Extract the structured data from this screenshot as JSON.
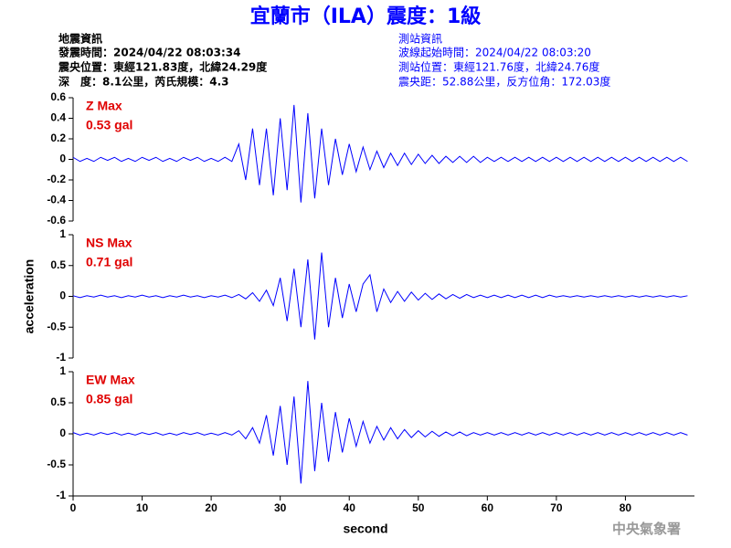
{
  "header": {
    "title": "宜蘭市（ILA）震度：1級",
    "left": [
      "地震資訊",
      "發震時間：2024/04/22 08:03:34",
      "震央位置：東經121.83度，北緯24.29度",
      "深　度：8.1公里，芮氏規模：4.3"
    ],
    "right": [
      "測站資訊",
      "波線起始時間：2024/04/22 08:03:20",
      "測站位置：東經121.76度，北緯24.76度",
      "震央距：52.88公里，反方位角：172.03度"
    ],
    "footer": "中央氣象署"
  },
  "chart_data": [
    {
      "type": "line",
      "name": "Z Max",
      "max_label": "0.53 gal",
      "color": "#0000ff",
      "x": [
        0,
        1,
        2,
        3,
        4,
        5,
        6,
        7,
        8,
        9,
        10,
        11,
        12,
        13,
        14,
        15,
        16,
        17,
        18,
        19,
        20,
        21,
        22,
        23,
        24,
        25,
        26,
        27,
        28,
        29,
        30,
        31,
        32,
        33,
        34,
        35,
        36,
        37,
        38,
        39,
        40,
        41,
        42,
        43,
        44,
        45,
        46,
        47,
        48,
        49,
        50,
        51,
        52,
        53,
        54,
        55,
        56,
        57,
        58,
        59,
        60,
        61,
        62,
        63,
        64,
        65,
        66,
        67,
        68,
        69,
        70,
        71,
        72,
        73,
        74,
        75,
        76,
        77,
        78,
        79,
        80,
        81,
        82,
        83,
        84,
        85,
        86,
        87,
        88,
        89
      ],
      "values": [
        0.02,
        -0.02,
        0.01,
        -0.02,
        0.02,
        -0.01,
        0.02,
        -0.02,
        0.01,
        -0.02,
        0.02,
        -0.01,
        0.02,
        -0.02,
        0.01,
        -0.02,
        0.02,
        -0.01,
        0.02,
        -0.02,
        0.01,
        -0.02,
        0.02,
        -0.02,
        0.15,
        -0.2,
        0.3,
        -0.25,
        0.3,
        -0.35,
        0.4,
        -0.3,
        0.53,
        -0.42,
        0.45,
        -0.38,
        0.3,
        -0.25,
        0.2,
        -0.15,
        0.15,
        -0.12,
        0.12,
        -0.1,
        0.08,
        -0.08,
        0.06,
        -0.06,
        0.06,
        -0.05,
        0.05,
        -0.04,
        0.04,
        -0.04,
        0.03,
        -0.03,
        0.03,
        -0.03,
        0.03,
        -0.03,
        0.02,
        -0.02,
        0.02,
        -0.02,
        0.02,
        -0.02,
        0.02,
        -0.02,
        0.02,
        -0.02,
        0.02,
        -0.02,
        0.02,
        -0.02,
        0.02,
        -0.02,
        0.02,
        -0.02,
        0.02,
        -0.02,
        0.02,
        -0.02,
        0.02,
        -0.02,
        0.02,
        -0.02,
        0.02,
        -0.02,
        0.02,
        -0.02
      ],
      "xlim": [
        0,
        90
      ],
      "ylim": [
        -0.6,
        0.6
      ],
      "yticks": [
        -0.6,
        -0.4,
        -0.2,
        0,
        0.2,
        0.4,
        0.6
      ]
    },
    {
      "type": "line",
      "name": "NS Max",
      "max_label": "0.71 gal",
      "color": "#0000ff",
      "ylabel": "acceleration",
      "x": [
        0,
        1,
        2,
        3,
        4,
        5,
        6,
        7,
        8,
        9,
        10,
        11,
        12,
        13,
        14,
        15,
        16,
        17,
        18,
        19,
        20,
        21,
        22,
        23,
        24,
        25,
        26,
        27,
        28,
        29,
        30,
        31,
        32,
        33,
        34,
        35,
        36,
        37,
        38,
        39,
        40,
        41,
        42,
        43,
        44,
        45,
        46,
        47,
        48,
        49,
        50,
        51,
        52,
        53,
        54,
        55,
        56,
        57,
        58,
        59,
        60,
        61,
        62,
        63,
        64,
        65,
        66,
        67,
        68,
        69,
        70,
        71,
        72,
        73,
        74,
        75,
        76,
        77,
        78,
        79,
        80,
        81,
        82,
        83,
        84,
        85,
        86,
        87,
        88,
        89
      ],
      "values": [
        0.01,
        -0.02,
        0.01,
        -0.01,
        0.02,
        -0.01,
        0.01,
        -0.02,
        0.01,
        -0.01,
        0.02,
        -0.01,
        0.01,
        -0.02,
        0.01,
        -0.01,
        0.02,
        -0.01,
        0.01,
        -0.02,
        0.01,
        -0.01,
        0.02,
        -0.02,
        0.03,
        -0.04,
        0.06,
        -0.08,
        0.1,
        -0.15,
        0.3,
        -0.4,
        0.45,
        -0.5,
        0.6,
        -0.7,
        0.71,
        -0.5,
        0.3,
        -0.35,
        0.2,
        -0.25,
        0.2,
        0.35,
        -0.25,
        0.12,
        -0.1,
        0.08,
        -0.08,
        0.07,
        -0.06,
        0.05,
        -0.05,
        0.04,
        -0.04,
        0.03,
        -0.03,
        0.03,
        -0.02,
        0.02,
        -0.02,
        0.02,
        -0.02,
        0.02,
        -0.02,
        0.02,
        -0.02,
        0.02,
        -0.02,
        0.02,
        -0.01,
        0.01,
        -0.01,
        0.01,
        -0.01,
        0.01,
        -0.01,
        0.01,
        -0.01,
        0.01,
        -0.01,
        0.01,
        -0.01,
        0.01,
        -0.01,
        0.01,
        -0.01,
        0.01,
        -0.01,
        0.01
      ],
      "xlim": [
        0,
        90
      ],
      "ylim": [
        -1,
        1
      ],
      "yticks": [
        -1,
        -0.5,
        0,
        0.5,
        1
      ]
    },
    {
      "type": "line",
      "name": "EW Max",
      "max_label": "0.85 gal",
      "color": "#0000ff",
      "xlabel": "second",
      "x": [
        0,
        1,
        2,
        3,
        4,
        5,
        6,
        7,
        8,
        9,
        10,
        11,
        12,
        13,
        14,
        15,
        16,
        17,
        18,
        19,
        20,
        21,
        22,
        23,
        24,
        25,
        26,
        27,
        28,
        29,
        30,
        31,
        32,
        33,
        34,
        35,
        36,
        37,
        38,
        39,
        40,
        41,
        42,
        43,
        44,
        45,
        46,
        47,
        48,
        49,
        50,
        51,
        52,
        53,
        54,
        55,
        56,
        57,
        58,
        59,
        60,
        61,
        62,
        63,
        64,
        65,
        66,
        67,
        68,
        69,
        70,
        71,
        72,
        73,
        74,
        75,
        76,
        77,
        78,
        79,
        80,
        81,
        82,
        83,
        84,
        85,
        86,
        87,
        88,
        89
      ],
      "values": [
        0.02,
        -0.02,
        0.01,
        -0.02,
        0.02,
        -0.01,
        0.02,
        -0.02,
        0.01,
        -0.02,
        0.02,
        -0.01,
        0.02,
        -0.02,
        0.01,
        -0.02,
        0.02,
        -0.01,
        0.02,
        -0.02,
        0.01,
        -0.02,
        0.02,
        -0.02,
        0.05,
        -0.08,
        0.1,
        -0.15,
        0.3,
        -0.35,
        0.45,
        -0.5,
        0.6,
        -0.8,
        0.85,
        -0.6,
        0.5,
        -0.45,
        0.35,
        -0.3,
        0.25,
        -0.2,
        0.2,
        -0.15,
        0.12,
        -0.1,
        0.1,
        -0.08,
        0.07,
        -0.06,
        0.05,
        -0.05,
        0.04,
        -0.04,
        0.03,
        -0.03,
        0.03,
        -0.03,
        0.02,
        -0.02,
        0.02,
        -0.02,
        0.02,
        -0.02,
        0.02,
        -0.02,
        0.02,
        -0.02,
        0.02,
        -0.02,
        0.02,
        -0.02,
        0.02,
        -0.02,
        0.02,
        -0.02,
        0.02,
        -0.02,
        0.02,
        -0.02,
        0.02,
        -0.02,
        0.02,
        -0.02,
        0.02,
        -0.02,
        0.02,
        -0.02,
        0.02,
        -0.02
      ],
      "xlim": [
        0,
        90
      ],
      "ylim": [
        -1,
        1
      ],
      "yticks": [
        -1,
        -0.5,
        0,
        0.5,
        1
      ],
      "xticks": [
        0,
        10,
        20,
        30,
        40,
        50,
        60,
        70,
        80
      ]
    }
  ]
}
